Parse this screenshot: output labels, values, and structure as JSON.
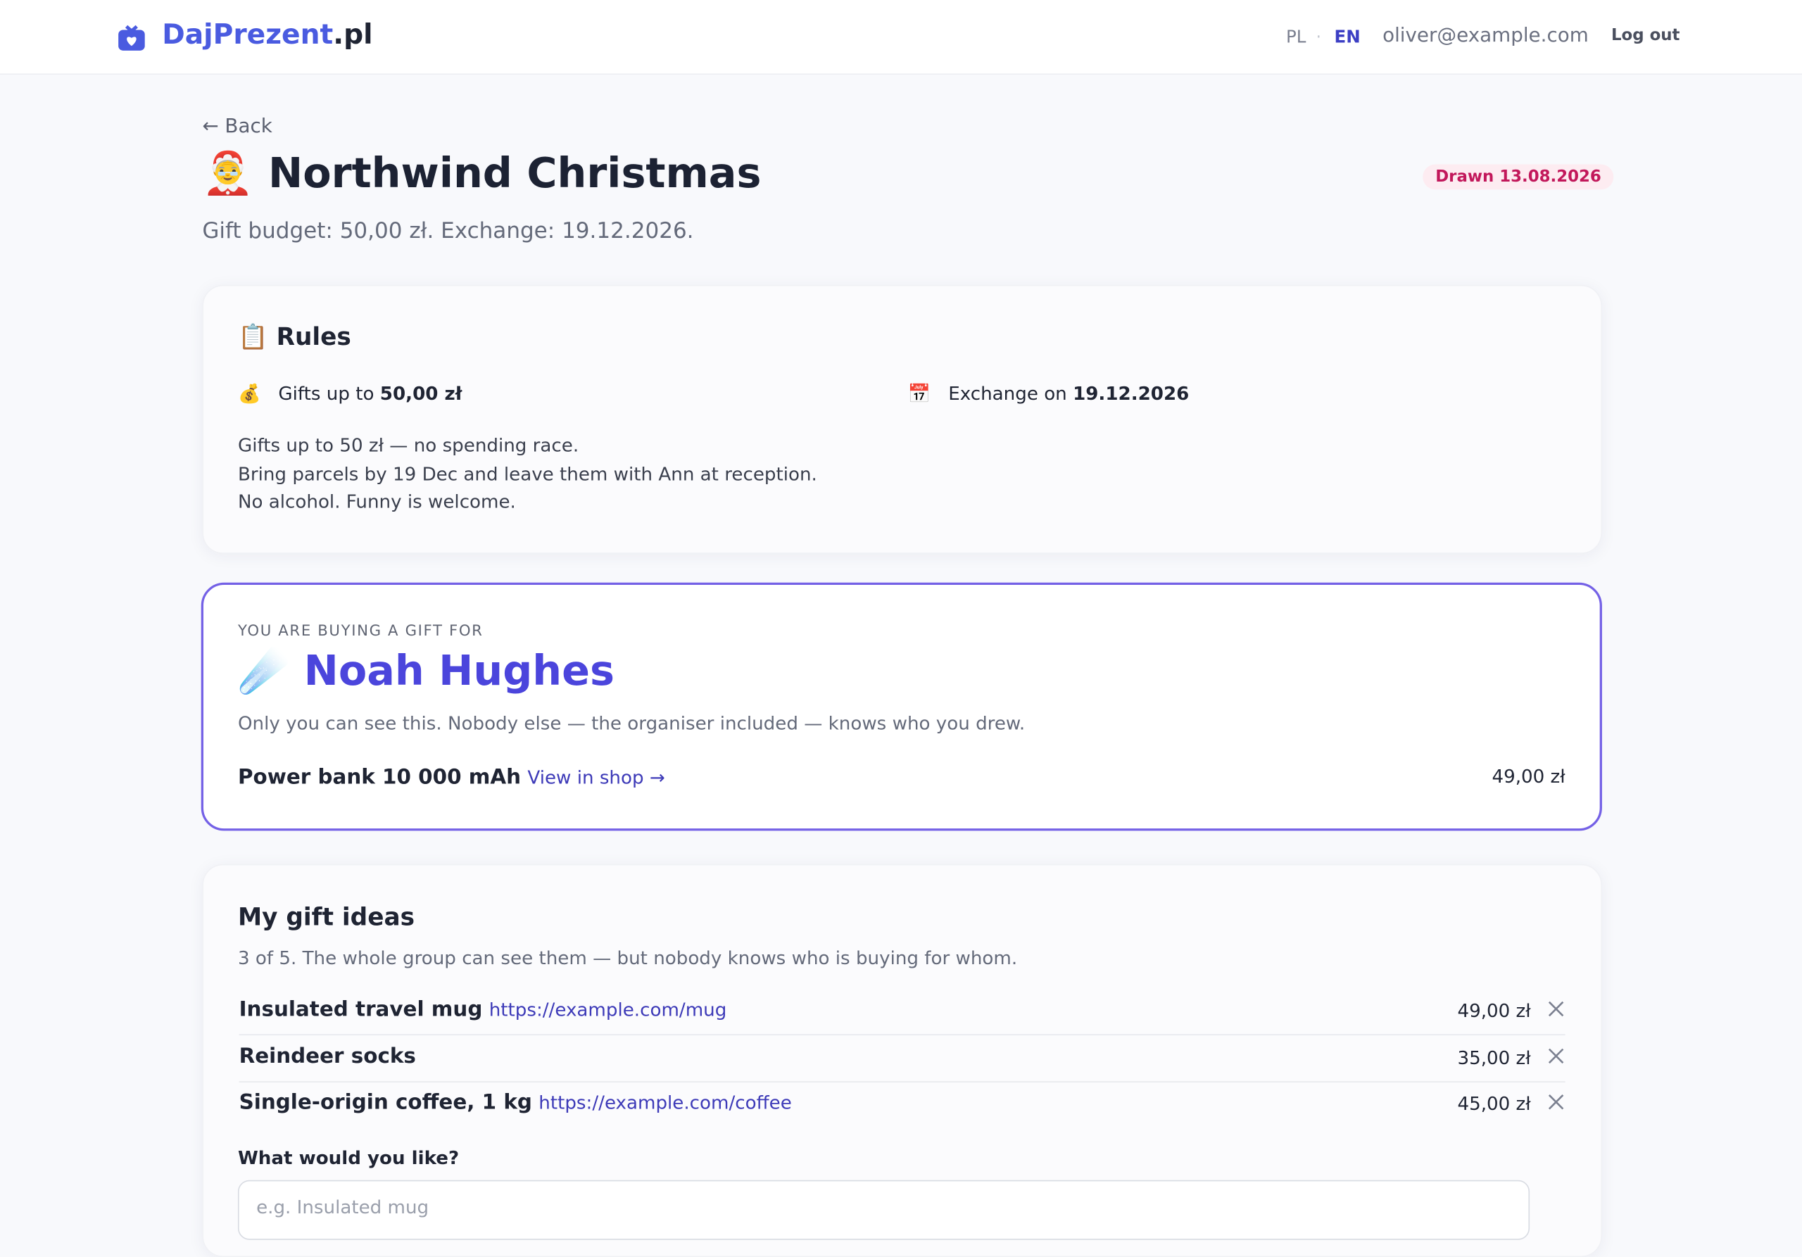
{
  "header": {
    "brand_main": "DajPrezent",
    "brand_suffix": ".pl",
    "lang_pl": "PL",
    "lang_sep": "·",
    "lang_en": "EN",
    "email": "oliver@example.com",
    "logout": "Log out"
  },
  "page": {
    "back": "← Back",
    "title_emoji": "🤶",
    "title": "Northwind Christmas",
    "badge": "Drawn 13.08.2026",
    "subtitle": "Gift budget: 50,00 zł. Exchange: 19.12.2026."
  },
  "rules": {
    "heading_emoji": "📋",
    "heading": "Rules",
    "budget_emoji": "💰",
    "budget_prefix": "Gifts up to",
    "budget_value": "50,00 zł",
    "date_emoji": "📅",
    "date_prefix": "Exchange on",
    "date_value": "19.12.2026",
    "lines": [
      "Gifts up to 50 zł — no spending race.",
      "Bring parcels by 19 Dec and leave them with Ann at reception.",
      "No alcohol. Funny is welcome."
    ]
  },
  "assignment": {
    "label": "YOU ARE BUYING A GIFT FOR",
    "emoji": "☄️",
    "name": "Noah Hughes",
    "note": "Only you can see this. Nobody else — the organiser included — knows who you drew.",
    "wish": "Power bank 10 000 mAh",
    "wish_link": "View in shop →",
    "wish_price": "49,00 zł"
  },
  "ideas": {
    "heading": "My gift ideas",
    "subtitle": "3 of 5. The whole group can see them — but nobody knows who is buying for whom.",
    "items": [
      {
        "name": "Insulated travel mug",
        "link": "https://example.com/mug",
        "price": "49,00 zł"
      },
      {
        "name": "Reindeer socks",
        "link": null,
        "price": "35,00 zł"
      },
      {
        "name": "Single-origin coffee, 1 kg",
        "link": "https://example.com/coffee",
        "price": "45,00 zł"
      }
    ],
    "input_label": "What would you like?",
    "input_placeholder": "e.g. Insulated mug"
  }
}
